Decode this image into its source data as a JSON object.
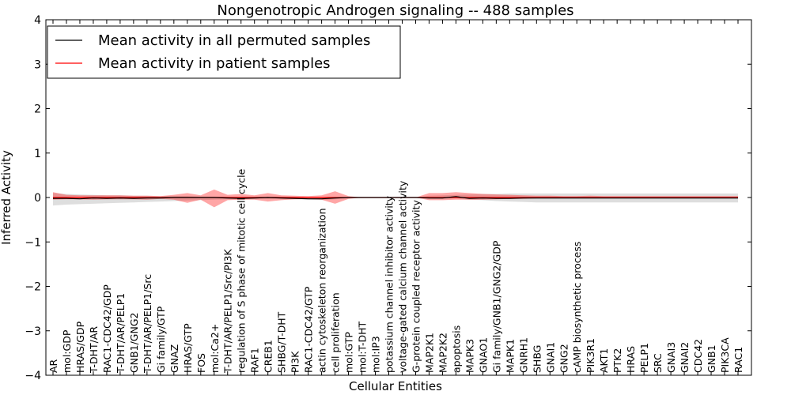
{
  "chart_data": {
    "type": "line",
    "title": "Nongenotropic Androgen signaling -- 488 samples",
    "xlabel": "Cellular Entities",
    "ylabel": "Inferred Activity",
    "ylim": [
      -4,
      4
    ],
    "yticks": [
      -4,
      -3,
      -2,
      -1,
      0,
      1,
      2,
      3,
      4
    ],
    "ytick_labels": [
      "−4",
      "−3",
      "−2",
      "−1",
      "0",
      "1",
      "2",
      "3",
      "4"
    ],
    "legend_position": "top-left",
    "categories": [
      "AR",
      "mol:GDP",
      "HRAS/GDP",
      "T-DHT/AR",
      "RAC1-CDC42/GDP",
      "T-DHT/AR/PELP1",
      "GNB1/GNG2",
      "T-DHT/AR/PELP1/Src",
      "Gi family/GTP",
      "GNAZ",
      "HRAS/GTP",
      "FOS",
      "mol:Ca2+",
      "T-DHT/AR/PELP1/Src/PI3K",
      "regulation of S phase of mitotic cell cycle",
      "RAF1",
      "CREB1",
      "SHBG/T-DHT",
      "PI3K",
      "RAC1-CDC42/GTP",
      "actin cytoskeleton reorganization",
      "cell proliferation",
      "mol:GTP",
      "mol:T-DHT",
      "mol:IP3",
      "potassium channel inhibitor activity",
      "voltage-gated calcium channel activity",
      "G-protein coupled receptor activity",
      "MAP2K1",
      "MAP2K2",
      "apoptosis",
      "MAPK3",
      "GNAO1",
      "Gi family/GNB1/GNG2/GDP",
      "MAPK1",
      "GNRH1",
      "SHBG",
      "GNAI1",
      "GNG2",
      "cAMP biosynthetic process",
      "PIK3R1",
      "AKT1",
      "PTK2",
      "HRAS",
      "PELP1",
      "SRC",
      "GNAI3",
      "GNAI2",
      "CDC42",
      "GNB1",
      "PIK3CA",
      "RAC1"
    ],
    "series": [
      {
        "name": "Mean activity in all permuted samples",
        "color": "#000000",
        "values": [
          -0.02,
          -0.02,
          -0.03,
          -0.01,
          -0.02,
          -0.01,
          -0.02,
          -0.01,
          -0.01,
          0.0,
          0.0,
          0.0,
          0.0,
          -0.01,
          -0.02,
          -0.01,
          0.0,
          -0.01,
          -0.02,
          -0.03,
          -0.03,
          -0.01,
          0.0,
          0.0,
          0.0,
          0.0,
          0.0,
          0.0,
          -0.01,
          -0.01,
          0.02,
          -0.02,
          -0.01,
          -0.02,
          -0.02,
          -0.01,
          -0.01,
          -0.01,
          -0.01,
          -0.01,
          -0.01,
          -0.01,
          -0.01,
          -0.01,
          -0.01,
          -0.01,
          -0.01,
          -0.01,
          -0.01,
          -0.01,
          -0.01,
          -0.01
        ],
        "band_lower": [
          -0.18,
          -0.16,
          -0.15,
          -0.14,
          -0.13,
          -0.12,
          -0.11,
          -0.1,
          -0.09,
          -0.08,
          -0.07,
          -0.06,
          -0.05,
          -0.04,
          -0.04,
          -0.03,
          -0.03,
          -0.03,
          -0.04,
          -0.05,
          -0.06,
          -0.04,
          -0.02,
          -0.01,
          0.0,
          0.0,
          0.0,
          0.0,
          -0.02,
          -0.03,
          -0.02,
          -0.05,
          -0.06,
          -0.08,
          -0.09,
          -0.1,
          -0.11,
          -0.11,
          -0.11,
          -0.11,
          -0.11,
          -0.11,
          -0.11,
          -0.11,
          -0.11,
          -0.11,
          -0.11,
          -0.11,
          -0.11,
          -0.11,
          -0.11,
          -0.11
        ],
        "band_upper": [
          0.1,
          0.08,
          0.07,
          0.06,
          0.05,
          0.05,
          0.04,
          0.04,
          0.03,
          0.03,
          0.03,
          0.02,
          0.02,
          0.02,
          0.02,
          0.02,
          0.02,
          0.02,
          0.01,
          0.01,
          0.01,
          0.01,
          0.0,
          0.0,
          0.0,
          0.0,
          0.0,
          0.0,
          0.04,
          0.05,
          0.06,
          0.07,
          0.08,
          0.08,
          0.09,
          0.09,
          0.09,
          0.09,
          0.09,
          0.09,
          0.09,
          0.09,
          0.09,
          0.09,
          0.09,
          0.09,
          0.09,
          0.09,
          0.09,
          0.09,
          0.09,
          0.09
        ]
      },
      {
        "name": "Mean activity in patient samples",
        "color": "#ff0000",
        "values": [
          0.0,
          0.0,
          0.0,
          0.0,
          0.0,
          0.0,
          0.0,
          0.0,
          0.0,
          0.0,
          0.0,
          0.0,
          0.0,
          0.0,
          0.0,
          0.0,
          0.0,
          0.0,
          0.0,
          0.0,
          0.0,
          0.0,
          0.0,
          0.0,
          0.0,
          0.0,
          0.0,
          0.0,
          0.0,
          0.0,
          0.0,
          0.0,
          0.0,
          0.0,
          0.0,
          0.0,
          0.0,
          0.0,
          0.0,
          0.0,
          0.0,
          0.0,
          0.0,
          0.0,
          0.0,
          0.0,
          0.0,
          0.0,
          0.0,
          0.0,
          0.0,
          0.0
        ],
        "band_lower": [
          -0.05,
          -0.04,
          -0.04,
          -0.05,
          -0.04,
          -0.04,
          -0.04,
          -0.05,
          -0.03,
          -0.05,
          -0.12,
          -0.05,
          -0.22,
          -0.06,
          -0.05,
          -0.05,
          -0.09,
          -0.06,
          -0.04,
          -0.03,
          -0.05,
          -0.14,
          -0.03,
          0.0,
          0.0,
          0.0,
          0.0,
          0.0,
          -0.06,
          -0.06,
          -0.05,
          -0.05,
          -0.05,
          -0.04,
          -0.03,
          -0.03,
          -0.02,
          -0.02,
          -0.02,
          -0.02,
          -0.02,
          -0.02,
          -0.02,
          -0.02,
          -0.02,
          -0.02,
          -0.02,
          -0.02,
          -0.02,
          -0.02,
          -0.02,
          -0.02
        ],
        "band_upper": [
          0.12,
          0.06,
          0.05,
          0.05,
          0.05,
          0.05,
          0.04,
          0.04,
          0.03,
          0.06,
          0.1,
          0.05,
          0.18,
          0.06,
          0.08,
          0.05,
          0.1,
          0.05,
          0.04,
          0.03,
          0.05,
          0.14,
          0.03,
          0.0,
          0.0,
          0.0,
          0.0,
          0.0,
          0.1,
          0.1,
          0.12,
          0.1,
          0.08,
          0.07,
          0.06,
          0.05,
          0.04,
          0.04,
          0.03,
          0.03,
          0.04,
          0.03,
          0.03,
          0.03,
          0.03,
          0.03,
          0.03,
          0.03,
          0.03,
          0.03,
          0.03,
          0.03
        ]
      }
    ]
  }
}
